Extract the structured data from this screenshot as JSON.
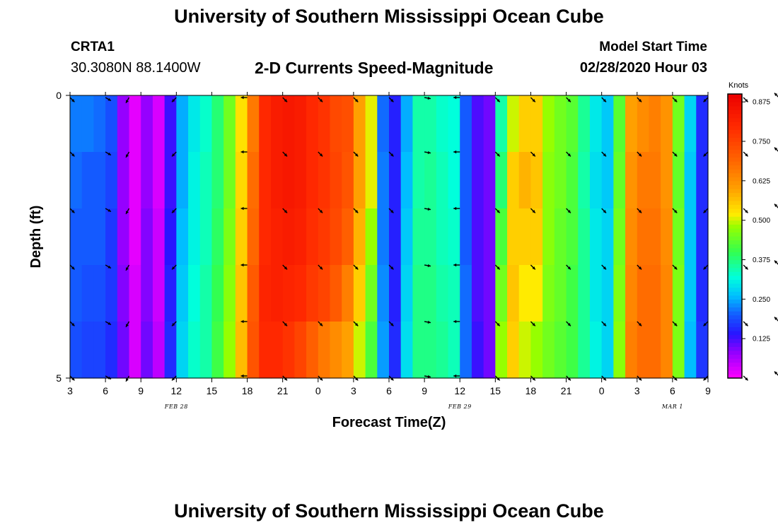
{
  "header": {
    "title": "University of Southern Mississippi Ocean Cube",
    "station_id": "CRTA1",
    "coordinates": "30.3080N 88.1400W",
    "product": "2-D Currents Speed-Magnitude",
    "model_start_label": "Model Start Time",
    "model_start_value": "02/28/2020 Hour 03"
  },
  "footer": {
    "title": "University of Southern Mississippi Ocean Cube"
  },
  "chart_data": {
    "type": "heatmap",
    "title": "2-D Currents Speed-Magnitude",
    "xlabel": "Forecast Time(Z)",
    "ylabel": "Depth (ft)",
    "y_ticks": [
      "0",
      "5"
    ],
    "ylim": [
      0,
      5
    ],
    "x_ticks": [
      "3",
      "6",
      "9",
      "12",
      "15",
      "18",
      "21",
      "0",
      "3",
      "6",
      "9",
      "12",
      "15",
      "18",
      "21",
      "0",
      "3",
      "6",
      "9"
    ],
    "date_labels": [
      {
        "text": "FEB 28",
        "at_tick": 3
      },
      {
        "text": "FEB 29",
        "at_tick": 11
      },
      {
        "text": "MAR 1",
        "at_tick": 17
      }
    ],
    "colorbar": {
      "unit": "Knots",
      "min": 0.0,
      "max": 0.9,
      "ticks": [
        "0.125",
        "0.250",
        "0.375",
        "0.500",
        "0.625",
        "0.750",
        "0.875"
      ],
      "tick_values": [
        0.125,
        0.25,
        0.375,
        0.5,
        0.625,
        0.75,
        0.875
      ]
    },
    "depth_rows": 5,
    "columns": 54,
    "hours_per_column": 1,
    "start_hour_offset": 0,
    "speeds": [
      [
        0.22,
        0.22,
        0.21,
        0.19,
        0.08,
        0.02,
        0.08,
        0.03,
        0.13,
        0.25,
        0.3,
        0.33,
        0.38,
        0.45,
        0.53,
        0.66,
        0.8,
        0.83,
        0.84,
        0.83,
        0.8,
        0.78,
        0.74,
        0.73,
        0.6,
        0.51,
        0.21,
        0.15,
        0.25,
        0.35,
        0.35,
        0.33,
        0.32,
        0.2,
        0.12,
        0.1,
        0.35,
        0.5,
        0.55,
        0.55,
        0.48,
        0.45,
        0.43,
        0.36,
        0.3,
        0.27,
        0.43,
        0.6,
        0.63,
        0.65,
        0.62,
        0.45,
        0.28,
        0.16
      ],
      [
        0.21,
        0.2,
        0.2,
        0.18,
        0.08,
        0.02,
        0.08,
        0.03,
        0.13,
        0.25,
        0.31,
        0.34,
        0.38,
        0.45,
        0.54,
        0.68,
        0.8,
        0.83,
        0.84,
        0.83,
        0.8,
        0.78,
        0.75,
        0.72,
        0.6,
        0.51,
        0.22,
        0.15,
        0.26,
        0.35,
        0.36,
        0.34,
        0.32,
        0.2,
        0.12,
        0.1,
        0.38,
        0.55,
        0.58,
        0.56,
        0.47,
        0.45,
        0.42,
        0.35,
        0.29,
        0.27,
        0.44,
        0.62,
        0.66,
        0.66,
        0.62,
        0.44,
        0.27,
        0.16
      ],
      [
        0.2,
        0.2,
        0.2,
        0.17,
        0.08,
        0.02,
        0.09,
        0.04,
        0.14,
        0.26,
        0.31,
        0.34,
        0.39,
        0.46,
        0.55,
        0.69,
        0.8,
        0.82,
        0.83,
        0.82,
        0.79,
        0.77,
        0.74,
        0.7,
        0.58,
        0.48,
        0.22,
        0.15,
        0.27,
        0.36,
        0.36,
        0.34,
        0.33,
        0.2,
        0.12,
        0.1,
        0.42,
        0.55,
        0.55,
        0.55,
        0.47,
        0.44,
        0.42,
        0.36,
        0.3,
        0.28,
        0.45,
        0.63,
        0.67,
        0.67,
        0.63,
        0.45,
        0.27,
        0.16
      ],
      [
        0.2,
        0.19,
        0.19,
        0.17,
        0.09,
        0.03,
        0.09,
        0.04,
        0.15,
        0.27,
        0.32,
        0.35,
        0.4,
        0.47,
        0.56,
        0.71,
        0.81,
        0.82,
        0.81,
        0.8,
        0.77,
        0.75,
        0.71,
        0.65,
        0.55,
        0.45,
        0.23,
        0.15,
        0.28,
        0.37,
        0.37,
        0.35,
        0.34,
        0.21,
        0.12,
        0.1,
        0.45,
        0.56,
        0.52,
        0.52,
        0.46,
        0.44,
        0.41,
        0.36,
        0.3,
        0.28,
        0.46,
        0.64,
        0.68,
        0.68,
        0.64,
        0.46,
        0.27,
        0.16
      ],
      [
        0.19,
        0.18,
        0.18,
        0.16,
        0.1,
        0.03,
        0.1,
        0.05,
        0.16,
        0.28,
        0.33,
        0.35,
        0.41,
        0.48,
        0.57,
        0.72,
        0.8,
        0.8,
        0.78,
        0.75,
        0.7,
        0.66,
        0.63,
        0.6,
        0.5,
        0.42,
        0.24,
        0.16,
        0.29,
        0.37,
        0.37,
        0.36,
        0.34,
        0.21,
        0.13,
        0.1,
        0.48,
        0.55,
        0.5,
        0.48,
        0.45,
        0.43,
        0.41,
        0.36,
        0.31,
        0.28,
        0.47,
        0.65,
        0.68,
        0.68,
        0.64,
        0.46,
        0.26,
        0.17
      ]
    ],
    "arrow_depth_rows": [
      0,
      1,
      2,
      3,
      4,
      5
    ],
    "arrow_hours": [
      0,
      3,
      5,
      9,
      15,
      18,
      21,
      24,
      27,
      30,
      33,
      36,
      39,
      42,
      45,
      48,
      51,
      54,
      57,
      60,
      63,
      66,
      69,
      72
    ],
    "arrow_angles_deg": [
      45,
      30,
      120,
      135,
      180,
      45,
      45,
      45,
      45,
      10,
      180,
      45,
      45,
      45,
      45,
      45,
      45,
      135,
      45,
      225,
      45,
      225,
      135,
      45
    ]
  }
}
